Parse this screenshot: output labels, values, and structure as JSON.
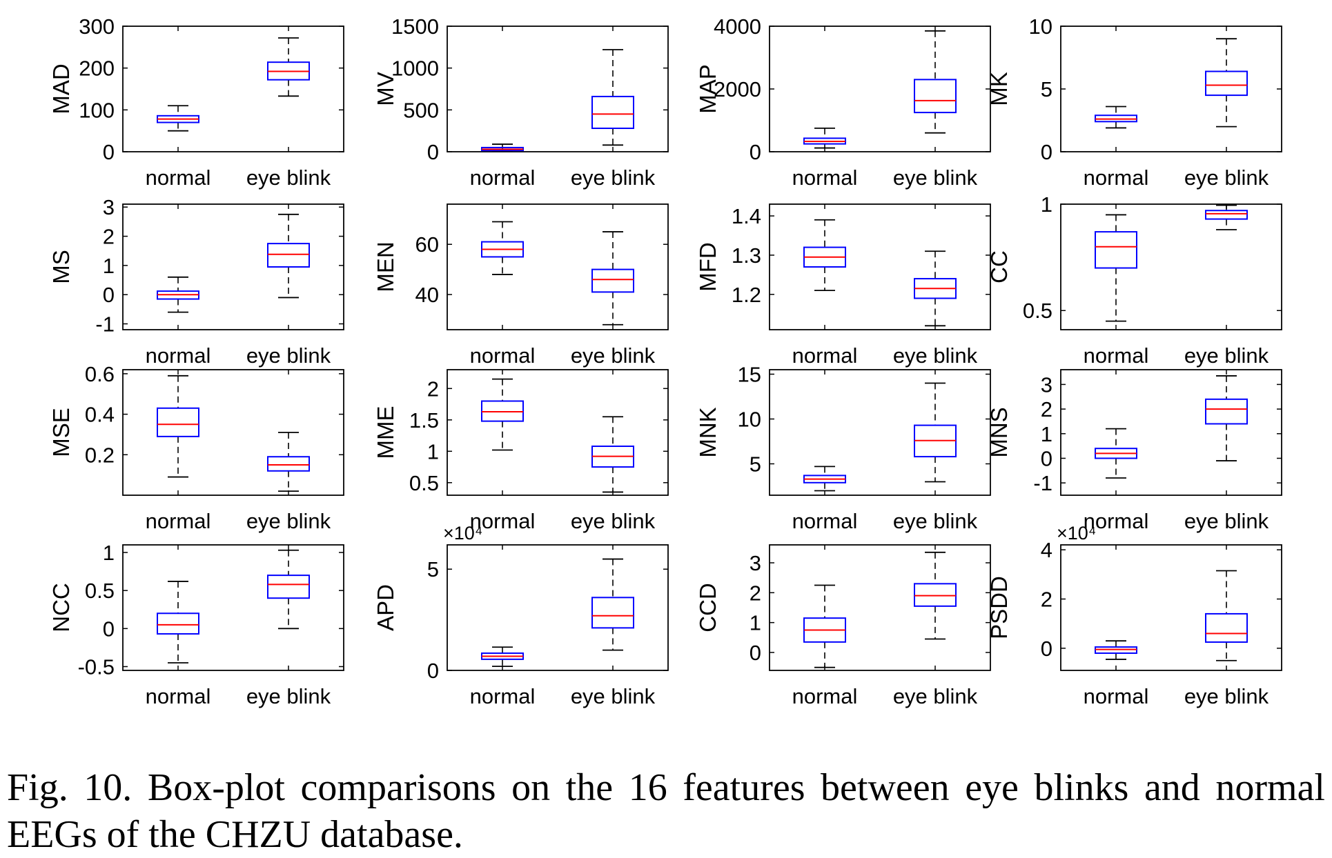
{
  "caption": "Fig. 10.  Box-plot comparisons on the 16 features between eye blinks and normal EEGs of the CHZU database.",
  "colors": {
    "box": "#0000ff",
    "median": "#ff0000",
    "whisker": "#000000",
    "axes": "#000000"
  },
  "chart_data": [
    {
      "type": "box",
      "ylabel": "MAD",
      "categories": [
        "normal",
        "eye blink"
      ],
      "yticks": [
        "0",
        "100",
        "200",
        "300"
      ],
      "ytick_values": [
        0,
        100,
        200,
        300
      ],
      "ylim": [
        0,
        300
      ],
      "multiplier": "",
      "boxes": [
        {
          "min": 50,
          "q1": 70,
          "median": 78,
          "q3": 86,
          "max": 110
        },
        {
          "min": 133,
          "q1": 172,
          "median": 192,
          "q3": 214,
          "max": 272
        }
      ]
    },
    {
      "type": "box",
      "ylabel": "MV",
      "categories": [
        "normal",
        "eye blink"
      ],
      "yticks": [
        "0",
        "500",
        "1000",
        "1500"
      ],
      "ytick_values": [
        0,
        500,
        1000,
        1500
      ],
      "ylim": [
        0,
        1500
      ],
      "multiplier": "",
      "boxes": [
        {
          "min": 5,
          "q1": 15,
          "median": 30,
          "q3": 50,
          "max": 90
        },
        {
          "min": 80,
          "q1": 280,
          "median": 450,
          "q3": 660,
          "max": 1220
        }
      ]
    },
    {
      "type": "box",
      "ylabel": "MAP",
      "categories": [
        "normal",
        "eye blink"
      ],
      "yticks": [
        "0",
        "2000",
        "4000"
      ],
      "ytick_values": [
        0,
        2000,
        4000
      ],
      "ylim": [
        0,
        4000
      ],
      "multiplier": "",
      "boxes": [
        {
          "min": 120,
          "q1": 250,
          "median": 330,
          "q3": 430,
          "max": 750
        },
        {
          "min": 600,
          "q1": 1250,
          "median": 1630,
          "q3": 2300,
          "max": 3850
        }
      ]
    },
    {
      "type": "box",
      "ylabel": "MK",
      "categories": [
        "normal",
        "eye blink"
      ],
      "yticks": [
        "0",
        "5",
        "10"
      ],
      "ytick_values": [
        0,
        5,
        10
      ],
      "ylim": [
        0,
        10
      ],
      "multiplier": "",
      "boxes": [
        {
          "min": 1.9,
          "q1": 2.4,
          "median": 2.6,
          "q3": 2.9,
          "max": 3.6
        },
        {
          "min": 2.0,
          "q1": 4.5,
          "median": 5.3,
          "q3": 6.4,
          "max": 9.0
        }
      ]
    },
    {
      "type": "box",
      "ylabel": "MS",
      "categories": [
        "normal",
        "eye blink"
      ],
      "yticks": [
        "-1",
        "0",
        "1",
        "2",
        "3"
      ],
      "ytick_values": [
        -1,
        0,
        1,
        2,
        3
      ],
      "ylim": [
        -1.2,
        3.1
      ],
      "multiplier": "",
      "boxes": [
        {
          "min": -0.6,
          "q1": -0.15,
          "median": 0.0,
          "q3": 0.12,
          "max": 0.6
        },
        {
          "min": -0.1,
          "q1": 0.95,
          "median": 1.38,
          "q3": 1.75,
          "max": 2.75
        }
      ]
    },
    {
      "type": "box",
      "ylabel": "MEN",
      "categories": [
        "normal",
        "eye blink"
      ],
      "yticks": [
        "40",
        "60"
      ],
      "ytick_values": [
        40,
        60
      ],
      "ylim": [
        26,
        76
      ],
      "multiplier": "",
      "boxes": [
        {
          "min": 48,
          "q1": 55,
          "median": 58,
          "q3": 61,
          "max": 69
        },
        {
          "min": 28,
          "q1": 41,
          "median": 46,
          "q3": 50,
          "max": 65
        }
      ]
    },
    {
      "type": "box",
      "ylabel": "MFD",
      "categories": [
        "normal",
        "eye blink"
      ],
      "yticks": [
        "1.2",
        "1.3",
        "1.4"
      ],
      "ytick_values": [
        1.2,
        1.3,
        1.4
      ],
      "ylim": [
        1.11,
        1.43
      ],
      "multiplier": "",
      "boxes": [
        {
          "min": 1.21,
          "q1": 1.27,
          "median": 1.295,
          "q3": 1.32,
          "max": 1.39
        },
        {
          "min": 1.12,
          "q1": 1.19,
          "median": 1.215,
          "q3": 1.24,
          "max": 1.31
        }
      ]
    },
    {
      "type": "box",
      "ylabel": "CC",
      "categories": [
        "normal",
        "eye blink"
      ],
      "yticks": [
        "0.5",
        "1"
      ],
      "ytick_values": [
        0.5,
        1
      ],
      "ylim": [
        0.41,
        1.0
      ],
      "multiplier": "",
      "boxes": [
        {
          "min": 0.45,
          "q1": 0.7,
          "median": 0.8,
          "q3": 0.87,
          "max": 0.95
        },
        {
          "min": 0.88,
          "q1": 0.93,
          "median": 0.955,
          "q3": 0.97,
          "max": 0.995
        }
      ]
    },
    {
      "type": "box",
      "ylabel": "MSE",
      "categories": [
        "normal",
        "eye blink"
      ],
      "yticks": [
        "0.2",
        "0.4",
        "0.6"
      ],
      "ytick_values": [
        0.2,
        0.4,
        0.6
      ],
      "ylim": [
        0.0,
        0.62
      ],
      "multiplier": "",
      "boxes": [
        {
          "min": 0.09,
          "q1": 0.29,
          "median": 0.35,
          "q3": 0.43,
          "max": 0.59
        },
        {
          "min": 0.02,
          "q1": 0.12,
          "median": 0.15,
          "q3": 0.19,
          "max": 0.31
        }
      ]
    },
    {
      "type": "box",
      "ylabel": "MME",
      "categories": [
        "normal",
        "eye blink"
      ],
      "yticks": [
        "0.5",
        "1",
        "1.5",
        "2"
      ],
      "ytick_values": [
        0.5,
        1,
        1.5,
        2
      ],
      "ylim": [
        0.3,
        2.3
      ],
      "multiplier": "",
      "boxes": [
        {
          "min": 1.02,
          "q1": 1.48,
          "median": 1.63,
          "q3": 1.8,
          "max": 2.15
        },
        {
          "min": 0.35,
          "q1": 0.75,
          "median": 0.92,
          "q3": 1.08,
          "max": 1.55
        }
      ]
    },
    {
      "type": "box",
      "ylabel": "MNK",
      "categories": [
        "normal",
        "eye blink"
      ],
      "yticks": [
        "5",
        "10",
        "15"
      ],
      "ytick_values": [
        5,
        10,
        15
      ],
      "ylim": [
        1.5,
        15.5
      ],
      "multiplier": "",
      "boxes": [
        {
          "min": 2.0,
          "q1": 2.9,
          "median": 3.3,
          "q3": 3.7,
          "max": 4.7
        },
        {
          "min": 3.0,
          "q1": 5.8,
          "median": 7.6,
          "q3": 9.3,
          "max": 14.0
        }
      ]
    },
    {
      "type": "box",
      "ylabel": "MNS",
      "categories": [
        "normal",
        "eye blink"
      ],
      "yticks": [
        "-1",
        "0",
        "1",
        "2",
        "3"
      ],
      "ytick_values": [
        -1,
        0,
        1,
        2,
        3
      ],
      "ylim": [
        -1.5,
        3.6
      ],
      "multiplier": "",
      "boxes": [
        {
          "min": -0.8,
          "q1": 0.0,
          "median": 0.2,
          "q3": 0.4,
          "max": 1.2
        },
        {
          "min": -0.1,
          "q1": 1.4,
          "median": 2.0,
          "q3": 2.4,
          "max": 3.35
        }
      ]
    },
    {
      "type": "box",
      "ylabel": "NCC",
      "categories": [
        "normal",
        "eye blink"
      ],
      "yticks": [
        "-0.5",
        "0",
        "0.5",
        "1"
      ],
      "ytick_values": [
        -0.5,
        0,
        0.5,
        1
      ],
      "ylim": [
        -0.55,
        1.1
      ],
      "multiplier": "",
      "boxes": [
        {
          "min": -0.45,
          "q1": -0.07,
          "median": 0.05,
          "q3": 0.2,
          "max": 0.62
        },
        {
          "min": 0.0,
          "q1": 0.4,
          "median": 0.58,
          "q3": 0.7,
          "max": 1.03
        }
      ]
    },
    {
      "type": "box",
      "ylabel": "APD",
      "categories": [
        "normal",
        "eye blink"
      ],
      "yticks": [
        "0",
        "5"
      ],
      "ytick_values": [
        0,
        5
      ],
      "ylim": [
        0,
        6.2
      ],
      "multiplier": "×10⁴",
      "boxes": [
        {
          "min": 0.2,
          "q1": 0.55,
          "median": 0.7,
          "q3": 0.85,
          "max": 1.15
        },
        {
          "min": 1.0,
          "q1": 2.1,
          "median": 2.7,
          "q3": 3.6,
          "max": 5.5
        }
      ]
    },
    {
      "type": "box",
      "ylabel": "CCD",
      "categories": [
        "normal",
        "eye blink"
      ],
      "yticks": [
        "0",
        "1",
        "2",
        "3"
      ],
      "ytick_values": [
        0,
        1,
        2,
        3
      ],
      "ylim": [
        -0.6,
        3.6
      ],
      "multiplier": "",
      "boxes": [
        {
          "min": -0.5,
          "q1": 0.35,
          "median": 0.75,
          "q3": 1.15,
          "max": 2.25
        },
        {
          "min": 0.45,
          "q1": 1.55,
          "median": 1.9,
          "q3": 2.3,
          "max": 3.35
        }
      ]
    },
    {
      "type": "box",
      "ylabel": "PSDD",
      "categories": [
        "normal",
        "eye blink"
      ],
      "yticks": [
        "0",
        "2",
        "4"
      ],
      "ytick_values": [
        0,
        2,
        4
      ],
      "ylim": [
        -0.9,
        4.2
      ],
      "multiplier": "×10⁴",
      "boxes": [
        {
          "min": -0.45,
          "q1": -0.2,
          "median": -0.05,
          "q3": 0.05,
          "max": 0.3
        },
        {
          "min": -0.5,
          "q1": 0.25,
          "median": 0.6,
          "q3": 1.4,
          "max": 3.15
        }
      ]
    }
  ]
}
